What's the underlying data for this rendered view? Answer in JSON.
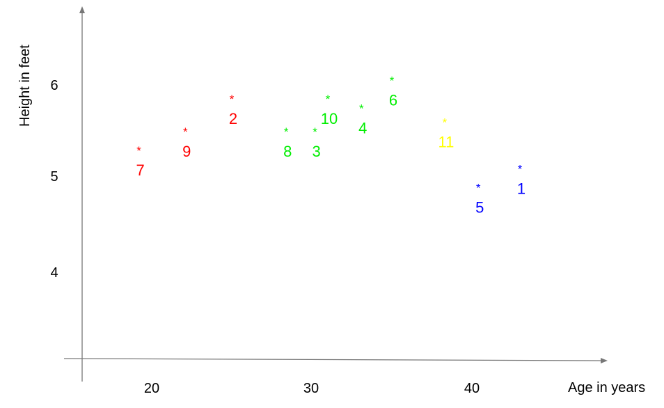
{
  "chart_data": {
    "type": "scatter",
    "xlabel": "Age in years",
    "ylabel": "Height in feet",
    "xlim": [
      15.5,
      47.5
    ],
    "ylim": [
      3.0,
      6.75
    ],
    "x_ticks": [
      "20",
      "30",
      "40"
    ],
    "y_ticks": [
      "4",
      "5",
      "6"
    ],
    "grid": false,
    "marker_symbol": "*",
    "points": [
      {
        "label": "1",
        "x": 43.0,
        "y": 5.1,
        "color": "#0000ff"
      },
      {
        "label": "2",
        "x": 25.0,
        "y": 5.85,
        "color": "#ff0000"
      },
      {
        "label": "3",
        "x": 30.2,
        "y": 5.5,
        "color": "#00ee00"
      },
      {
        "label": "4",
        "x": 33.1,
        "y": 5.75,
        "color": "#00ee00"
      },
      {
        "label": "5",
        "x": 40.4,
        "y": 4.9,
        "color": "#0000ff"
      },
      {
        "label": "6",
        "x": 35.0,
        "y": 6.05,
        "color": "#00ee00"
      },
      {
        "label": "7",
        "x": 19.2,
        "y": 5.3,
        "color": "#ff0000"
      },
      {
        "label": "8",
        "x": 28.4,
        "y": 5.5,
        "color": "#00ee00"
      },
      {
        "label": "9",
        "x": 22.1,
        "y": 5.5,
        "color": "#ff0000"
      },
      {
        "label": "10",
        "x": 31.0,
        "y": 5.85,
        "color": "#00ee00"
      },
      {
        "label": "11",
        "x": 38.3,
        "y": 5.6,
        "color": "#ffff00"
      }
    ]
  }
}
